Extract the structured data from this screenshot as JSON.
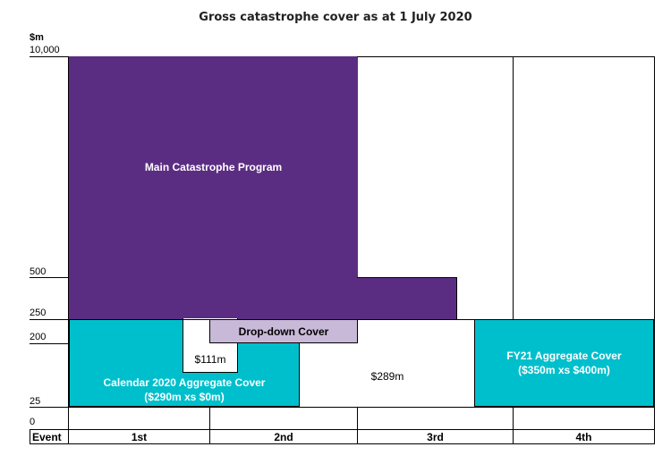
{
  "chart_data": {
    "type": "layered-cover-diagram",
    "title": "Gross catastrophe cover as at 1 July 2020",
    "unit": "$m",
    "y_ticks": [
      "10,000",
      "500",
      "250",
      "200",
      "25",
      "0"
    ],
    "x_axis_label": "Event",
    "x_categories": [
      "1st",
      "2nd",
      "3rd",
      "4th"
    ],
    "layers": [
      {
        "name": "Main Catastrophe Program",
        "lower_bound_m": 250,
        "upper_bound_m": 10000,
        "events": [
          "1st",
          "2nd"
        ],
        "note": "extends to 3rd event between 250 and 500"
      },
      {
        "name": "Drop-down Cover",
        "events": [
          "2nd"
        ]
      },
      {
        "name": "Calendar 2020 Aggregate Cover",
        "detail": "($290m xs $0m)",
        "lower_bound_m": 25,
        "upper_bound_m": 250
      },
      {
        "name": "FY21 Aggregate Cover",
        "detail": "($350m xs $400m)",
        "lower_bound_m": 25,
        "upper_bound_m": 250,
        "events": [
          "4th"
        ]
      }
    ],
    "amount_labels": [
      "$111m",
      "$289m"
    ]
  },
  "colors": {
    "main_program": "#5b2d82",
    "aggregate": "#00bfcc",
    "dropdown": "#c9b9d9"
  }
}
